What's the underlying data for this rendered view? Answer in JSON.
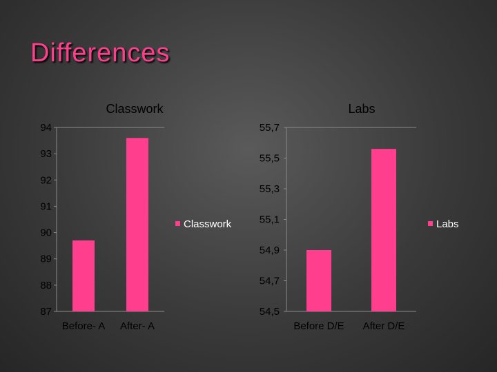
{
  "slide": {
    "title": "Differences"
  },
  "colors": {
    "bar": "#ff3f8e",
    "axis": "#8a8a8a"
  },
  "chart_data": [
    {
      "type": "bar",
      "title": "Classwork",
      "categories": [
        "Before- A",
        "After- A"
      ],
      "series": [
        {
          "name": "Classwork",
          "values": [
            89.7,
            93.6
          ]
        }
      ],
      "ylim": [
        87,
        94
      ],
      "yticks": [
        "94",
        "93",
        "92",
        "91",
        "90",
        "89",
        "88",
        "87"
      ],
      "legend": "right",
      "grid": false
    },
    {
      "type": "bar",
      "title": "Labs",
      "categories": [
        "Before D/E",
        "After D/E"
      ],
      "series": [
        {
          "name": "Labs",
          "values": [
            54.9,
            55.56
          ]
        }
      ],
      "ylim": [
        54.5,
        55.7
      ],
      "yticks": [
        "55,7",
        "55,5",
        "55,3",
        "55,1",
        "54,9",
        "54,7",
        "54,5"
      ],
      "legend": "right",
      "grid": false
    }
  ]
}
